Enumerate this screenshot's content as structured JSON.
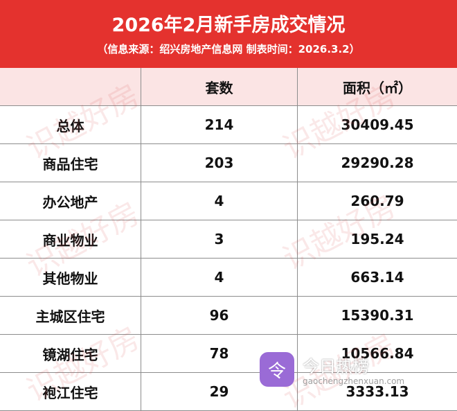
{
  "header": {
    "title": "2026年2月新手房成交情况",
    "subtitle": "（信息来源：绍兴房地产信息网  制表时间：2026.3.2）"
  },
  "table": {
    "columns": [
      "套数",
      "面积（㎡）"
    ],
    "rows": [
      [
        "总体",
        "214",
        "30409.45"
      ],
      [
        "商品住宅",
        "203",
        "29290.28"
      ],
      [
        "办公地产",
        "4",
        "260.79"
      ],
      [
        "商业物业",
        "3",
        "195.24"
      ],
      [
        "其他物业",
        "4",
        "663.14"
      ],
      [
        "主城区住宅",
        "96",
        "15390.31"
      ],
      [
        "镜湖住宅",
        "78",
        "10566.84"
      ],
      [
        "袍江住宅",
        "29",
        "3333.13"
      ]
    ]
  },
  "watermark": "识越好房",
  "logo": {
    "name": "今日热榜",
    "url": "gaochengzhenxuan.com"
  }
}
